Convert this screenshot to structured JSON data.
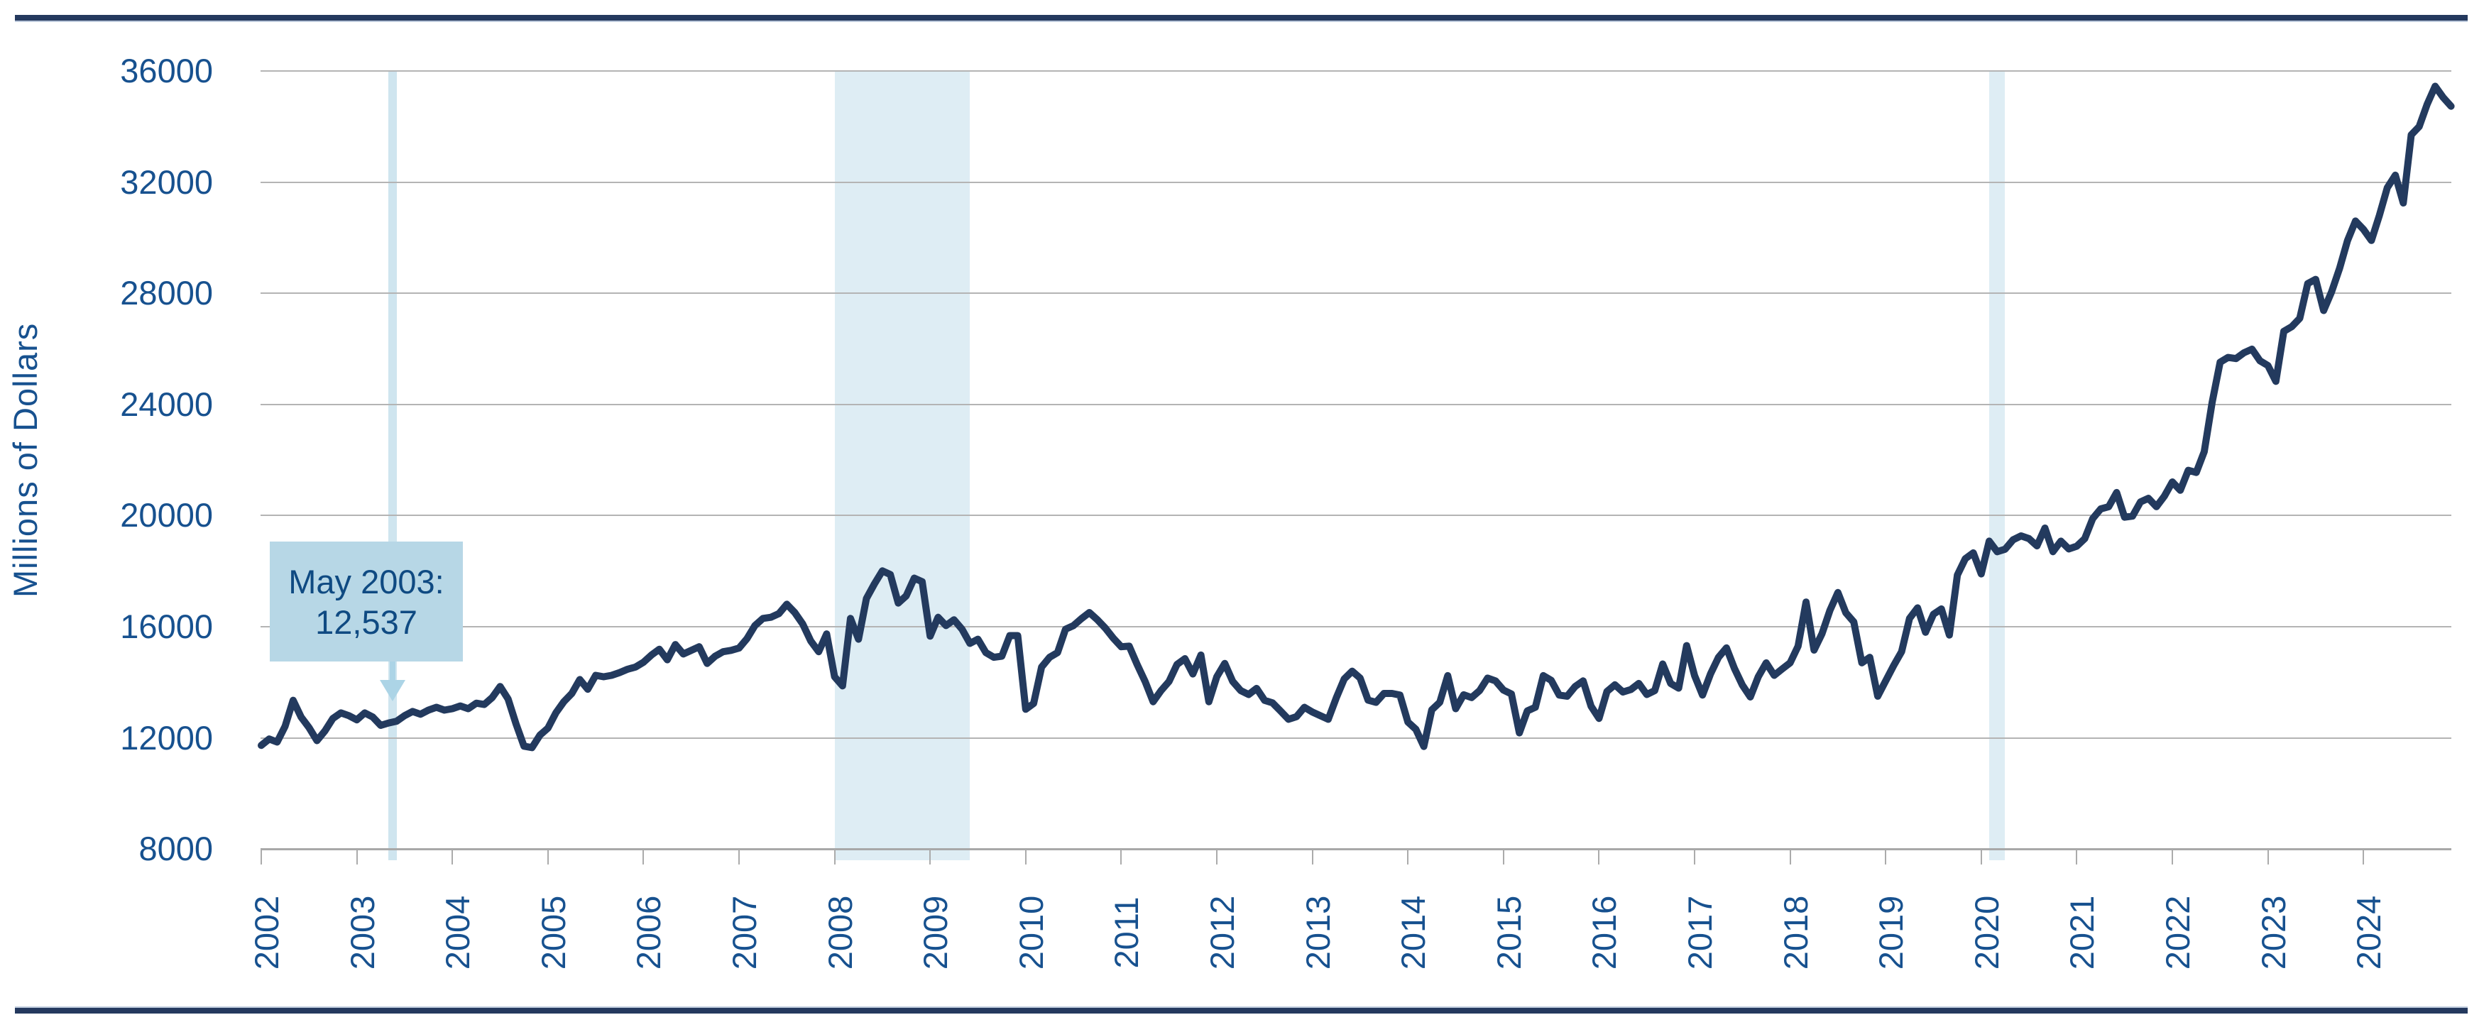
{
  "figure": {
    "y_axis_title": "Millions of Dollars",
    "annotation": {
      "line1": "May 2003:",
      "line2": "12,537"
    }
  },
  "colors": {
    "line": "#233A5E",
    "figure_border": "#24395E",
    "gridline": "#B4B4B4",
    "axis_line": "#A8A8A8",
    "tick": "#ABABAB",
    "axis_text": "#17518F",
    "recession_band": "#DEEDF4",
    "highlight_band": "#CFE5EF",
    "annotation_bg": "#B7D7E6",
    "annotation_text": "#0F4A82",
    "arrow": "#ACD4E6"
  },
  "chart_data": {
    "type": "line",
    "title": "",
    "xlabel": "",
    "ylabel": "Millions of Dollars",
    "ylim": [
      8000,
      36000
    ],
    "y_ticks": [
      36000,
      32000,
      28000,
      24000,
      20000,
      16000,
      12000,
      8000
    ],
    "x_tick_years": [
      2002,
      2003,
      2004,
      2005,
      2006,
      2007,
      2008,
      2009,
      2010,
      2011,
      2012,
      2013,
      2014,
      2015,
      2016,
      2017,
      2018,
      2019,
      2020,
      2021,
      2022,
      2023,
      2024
    ],
    "grid": "horizontal-only",
    "legend": "none",
    "frequency": "monthly",
    "start": "2002-01",
    "end": "2024-12",
    "annotation": {
      "text": "May 2003: 12,537",
      "x": "2003-05",
      "y": 12537
    },
    "shaded_regions": [
      {
        "name": "may-2003-highlight",
        "from": "2003-05",
        "to": "2003-06",
        "style": "highlight_band"
      },
      {
        "name": "recession-2008-09",
        "from": "2008-01",
        "to": "2009-06",
        "style": "recession_band"
      },
      {
        "name": "recession-2020",
        "from": "2020-02",
        "to": "2020-04",
        "style": "recession_band"
      }
    ],
    "series": [
      {
        "name": "value",
        "values": [
          11730,
          11960,
          11850,
          12420,
          13350,
          12750,
          12370,
          11900,
          12250,
          12700,
          12900,
          12800,
          12650,
          12900,
          12750,
          12450,
          12537,
          12600,
          12800,
          12950,
          12850,
          13000,
          13100,
          13000,
          13050,
          13150,
          13050,
          13250,
          13200,
          13450,
          13850,
          13400,
          12500,
          11700,
          11650,
          12100,
          12350,
          12900,
          13300,
          13600,
          14100,
          13750,
          14250,
          14200,
          14250,
          14350,
          14470,
          14550,
          14720,
          14980,
          15190,
          14810,
          15360,
          15020,
          15150,
          15280,
          14680,
          14940,
          15100,
          15150,
          15230,
          15570,
          16040,
          16300,
          16340,
          16470,
          16810,
          16510,
          16100,
          15490,
          15100,
          15740,
          14200,
          13870,
          16300,
          15550,
          17020,
          17540,
          18010,
          17880,
          16850,
          17110,
          17750,
          17620,
          15660,
          16340,
          16040,
          16250,
          15910,
          15400,
          15550,
          15070,
          14900,
          14940,
          15680,
          15680,
          13030,
          13240,
          14550,
          14900,
          15070,
          15910,
          16040,
          16290,
          16510,
          16250,
          15950,
          15590,
          15280,
          15300,
          14640,
          14030,
          13300,
          13700,
          14030,
          14640,
          14850,
          14300,
          14980,
          13300,
          14200,
          14680,
          14030,
          13700,
          13560,
          13780,
          13350,
          13260,
          12970,
          12670,
          12760,
          13100,
          12930,
          12800,
          12670,
          13440,
          14120,
          14400,
          14150,
          13360,
          13280,
          13600,
          13600,
          13540,
          12570,
          12310,
          11690,
          13010,
          13280,
          14240,
          13050,
          13550,
          13450,
          13700,
          14150,
          14050,
          13720,
          13580,
          12180,
          12970,
          13100,
          14240,
          14070,
          13540,
          13500,
          13850,
          14050,
          13140,
          12700,
          13670,
          13910,
          13650,
          13740,
          13960,
          13560,
          13700,
          14660,
          13960,
          13790,
          15320,
          14240,
          13540,
          14300,
          14900,
          15240,
          14500,
          13900,
          13470,
          14200,
          14700,
          14250,
          14480,
          14700,
          15300,
          16890,
          15160,
          15750,
          16590,
          17230,
          16500,
          16170,
          14700,
          14900,
          13500,
          14050,
          14600,
          15100,
          16300,
          16680,
          15800,
          16450,
          16640,
          15700,
          17860,
          18450,
          18660,
          17900,
          19080,
          18700,
          18790,
          19130,
          19270,
          19170,
          18910,
          19550,
          18700,
          19080,
          18800,
          18900,
          19170,
          19890,
          20240,
          20320,
          20830,
          19940,
          19980,
          20490,
          20620,
          20320,
          20700,
          21210,
          20910,
          21630,
          21550,
          22300,
          24080,
          25520,
          25690,
          25650,
          25860,
          25990,
          25570,
          25400,
          24830,
          26630,
          26800,
          27100,
          28350,
          28500,
          27380,
          28050,
          28900,
          29900,
          30600,
          30300,
          29900,
          30800,
          31800,
          32250,
          31250,
          33700,
          34000,
          34800,
          35450,
          35050,
          34730
        ]
      }
    ]
  }
}
